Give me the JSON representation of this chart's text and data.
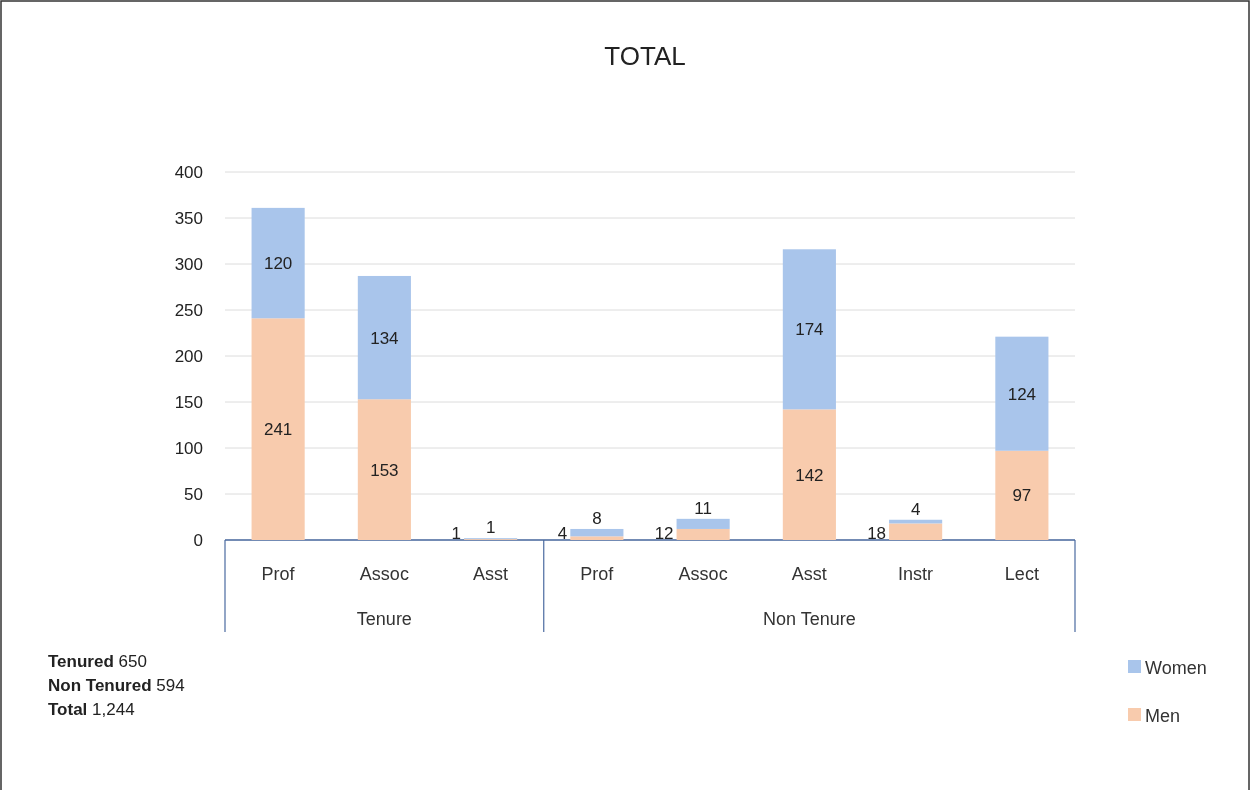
{
  "chart_data": {
    "type": "bar",
    "title": "TOTAL",
    "stacked": true,
    "data_labels": true,
    "grid": "y",
    "legend": "bottom right",
    "categories": [
      "Prof",
      "Assoc",
      "Asst",
      "Prof",
      "Assoc",
      "Asst",
      "Instr",
      "Lect"
    ],
    "series": [
      {
        "name": "Men",
        "color": "#f8cbad",
        "values": [
          241,
          153,
          1,
          4,
          12,
          142,
          18,
          97
        ]
      },
      {
        "name": "Women",
        "color": "#a9c5eb",
        "values": [
          120,
          134,
          1,
          8,
          11,
          174,
          4,
          124
        ]
      }
    ],
    "ylim": [
      0,
      400
    ],
    "yticks": [
      0,
      50,
      100,
      150,
      200,
      250,
      300,
      350,
      400
    ],
    "annotations": [
      "Tenure",
      "Non Tenure",
      "Tenured 650",
      "Non Tenured 594",
      "Total 1,244"
    ]
  }
}
